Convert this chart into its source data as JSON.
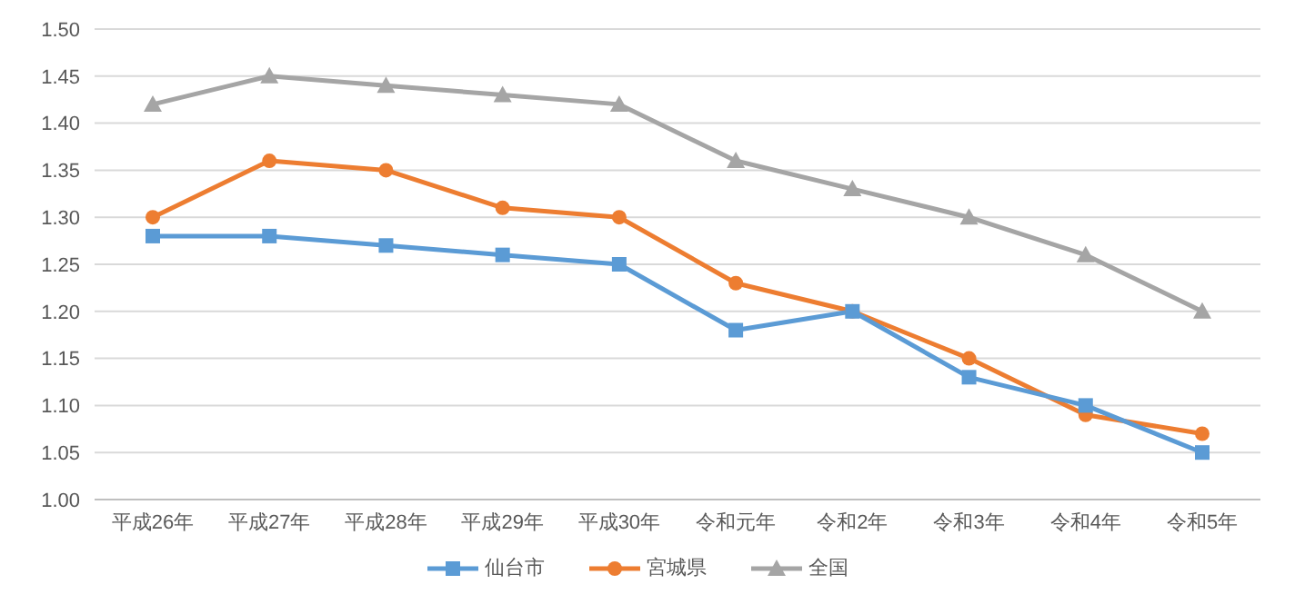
{
  "chart_data": {
    "type": "line",
    "categories": [
      "平成26年",
      "平成27年",
      "平成28年",
      "平成29年",
      "平成30年",
      "令和元年",
      "令和2年",
      "令和3年",
      "令和4年",
      "令和5年"
    ],
    "series": [
      {
        "name": "仙台市",
        "color": "#5b9bd5",
        "marker": "square",
        "values": [
          1.28,
          1.28,
          1.27,
          1.26,
          1.25,
          1.18,
          1.2,
          1.13,
          1.1,
          1.05
        ]
      },
      {
        "name": "宮城県",
        "color": "#ed7d31",
        "marker": "circle",
        "values": [
          1.3,
          1.36,
          1.35,
          1.31,
          1.3,
          1.23,
          1.2,
          1.15,
          1.09,
          1.07
        ]
      },
      {
        "name": "全国",
        "color": "#a5a5a5",
        "marker": "triangle",
        "values": [
          1.42,
          1.45,
          1.44,
          1.43,
          1.42,
          1.36,
          1.33,
          1.3,
          1.26,
          1.2
        ]
      }
    ],
    "ylim": [
      1.0,
      1.5
    ],
    "yticks": [
      {
        "value": 1.0,
        "label": "1.00"
      },
      {
        "value": 1.05,
        "label": "1.05"
      },
      {
        "value": 1.1,
        "label": "1.10"
      },
      {
        "value": 1.15,
        "label": "1.15"
      },
      {
        "value": 1.2,
        "label": "1.20"
      },
      {
        "value": 1.25,
        "label": "1.25"
      },
      {
        "value": 1.3,
        "label": "1.30"
      },
      {
        "value": 1.35,
        "label": "1.35"
      },
      {
        "value": 1.4,
        "label": "1.40"
      },
      {
        "value": 1.45,
        "label": "1.45"
      },
      {
        "value": 1.5,
        "label": "1.50"
      }
    ],
    "grid": "y",
    "legend": "bottom",
    "line_style": "solid"
  }
}
